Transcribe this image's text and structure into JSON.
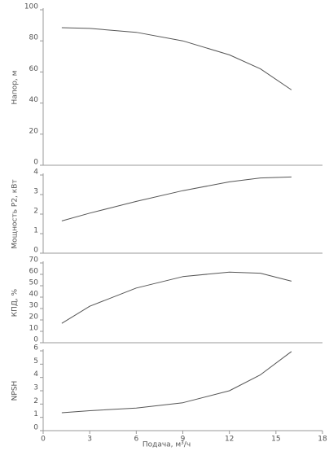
{
  "chart_data": [
    {
      "type": "line",
      "ylabel": "Напор, м",
      "x": [
        1.2,
        3,
        6,
        9,
        12,
        14,
        16
      ],
      "values": [
        88.5,
        88,
        85.5,
        80,
        71,
        62,
        48.5
      ],
      "color": "#555555",
      "xlim": [
        0,
        18
      ],
      "ylim": [
        0,
        100
      ],
      "yticks": [
        0,
        20,
        40,
        60,
        80,
        100
      ]
    },
    {
      "type": "line",
      "ylabel": "Мощность P2, кВт",
      "x": [
        1.2,
        3,
        6,
        9,
        12,
        14,
        16
      ],
      "values": [
        1.65,
        2.05,
        2.65,
        3.2,
        3.65,
        3.85,
        3.9
      ],
      "color": "#555555",
      "xlim": [
        0,
        18
      ],
      "ylim": [
        0,
        4
      ],
      "yticks": [
        0,
        1,
        2,
        3,
        4
      ]
    },
    {
      "type": "line",
      "ylabel": "КПД, %",
      "x": [
        1.2,
        3,
        6,
        9,
        12,
        14,
        16
      ],
      "values": [
        17,
        32,
        48,
        58,
        62,
        61,
        54
      ],
      "color": "#555555",
      "xlim": [
        0,
        18
      ],
      "ylim": [
        0,
        70
      ],
      "yticks": [
        0,
        10,
        20,
        30,
        40,
        50,
        60,
        70
      ]
    },
    {
      "type": "line",
      "ylabel": "NPSH",
      "xlabel": "Подача, м³/ч",
      "x": [
        1.2,
        3,
        6,
        9,
        12,
        14,
        16
      ],
      "values": [
        1.35,
        1.5,
        1.7,
        2.1,
        3.0,
        4.2,
        5.95
      ],
      "color": "#555555",
      "xlim": [
        0,
        18
      ],
      "ylim": [
        0,
        6
      ],
      "yticks": [
        0,
        1,
        2,
        3,
        4,
        5,
        6
      ],
      "xticks": [
        0,
        3,
        6,
        9,
        12,
        15,
        18
      ]
    }
  ]
}
